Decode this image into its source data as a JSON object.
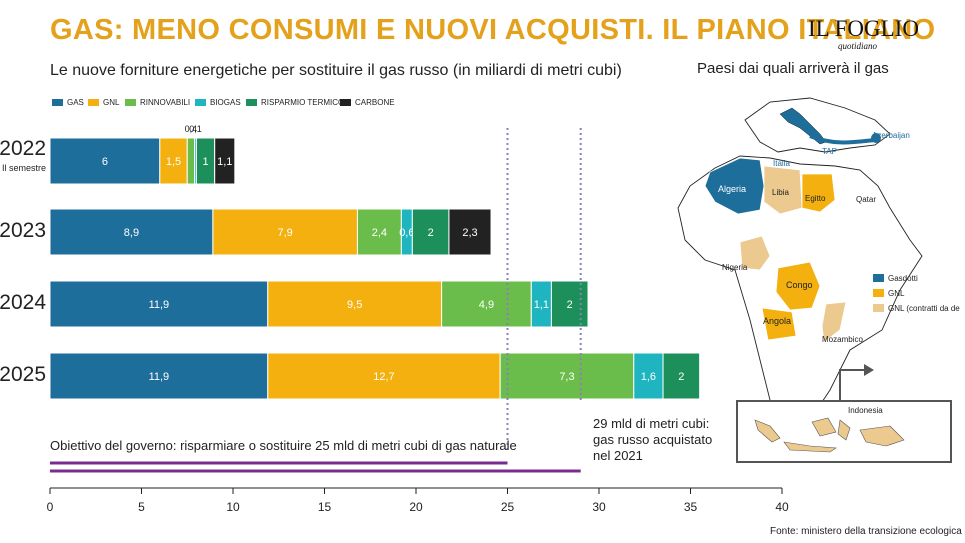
{
  "header": {
    "title": "GAS: MENO CONSUMI E NUOVI ACQUISTI. IL PIANO ITALIANO",
    "subtitle": "Le nuove forniture energetiche per sostituire il gas russo (in miliardi di metri cubi)",
    "brand": "IL FOGLIO",
    "brand_sub": "quotidiano"
  },
  "colors": {
    "gas": "#1e6e9c",
    "gnl": "#f3b00f",
    "rinnovabili": "#6bbd4b",
    "biogas": "#1fb5c0",
    "risparmio": "#1c8f5a",
    "carbone": "#222222",
    "gnl_light": "#ecc98e",
    "goal_line": "#7a2c8e",
    "title": "#e4a11b"
  },
  "chart_data": {
    "type": "bar",
    "orientation": "horizontal",
    "stacked": true,
    "categories": [
      "2022",
      "2023",
      "2024",
      "2025"
    ],
    "category_sublabels": [
      "Il semestre",
      "",
      "",
      ""
    ],
    "series": [
      {
        "name": "GAS",
        "values": [
          6,
          8.9,
          11.9,
          11.9
        ],
        "labels": [
          "6",
          "8,9",
          "11,9",
          "11,9"
        ]
      },
      {
        "name": "GNL",
        "values": [
          1.5,
          7.9,
          9.5,
          12.7
        ],
        "labels": [
          "1,5",
          "7,9",
          "9,5",
          "12,7"
        ]
      },
      {
        "name": "RINNOVABILI",
        "values": [
          0.4,
          2.4,
          4.9,
          7.3
        ],
        "labels": [
          "0,4",
          "2,4",
          "4,9",
          "7,3"
        ]
      },
      {
        "name": "BIOGAS",
        "values": [
          0.1,
          0.6,
          1.1,
          1.6
        ],
        "labels": [
          "0,1",
          "0,6",
          "1,1",
          "1,6"
        ]
      },
      {
        "name": "RISPARMIO TERMICO",
        "values": [
          1,
          2,
          2,
          2
        ],
        "labels": [
          "1",
          "2",
          "2",
          "2"
        ]
      },
      {
        "name": "CARBONE",
        "values": [
          1.1,
          2.3,
          0,
          0
        ],
        "labels": [
          "1,1",
          "2,3",
          "",
          ""
        ]
      }
    ],
    "xlim": [
      0,
      40
    ],
    "xticks": [
      "0",
      "5",
      "10",
      "15",
      "20",
      "25",
      "30",
      "35",
      "40"
    ],
    "reference_lines": [
      {
        "value": 25,
        "text": "Obiettivo del governo: risparmiare o sostituire 25 mld di metri cubi di gas naturale"
      },
      {
        "value": 29,
        "text": "29 mld di metri cubi: gas russo acquistato nel 2021"
      }
    ],
    "legend": "top-left"
  },
  "map": {
    "title": "Paesi dai quali arriverà il gas",
    "labels": {
      "azerbaijan": "Azerbaijan",
      "tap": "TAP",
      "italia": "Italia",
      "algeria": "Algeria",
      "libia": "Libia",
      "egitto": "Egitto",
      "qatar": "Qatar",
      "nigeria": "Nigeria",
      "congo": "Congo",
      "angola": "Angola",
      "mozambico": "Mozambico",
      "indonesia": "Indonesia"
    },
    "legend": [
      "Gasdotti",
      "GNL",
      "GNL (contratti da definire)"
    ]
  },
  "footer": {
    "source": "Fonte: ministero della transizione ecologica"
  }
}
